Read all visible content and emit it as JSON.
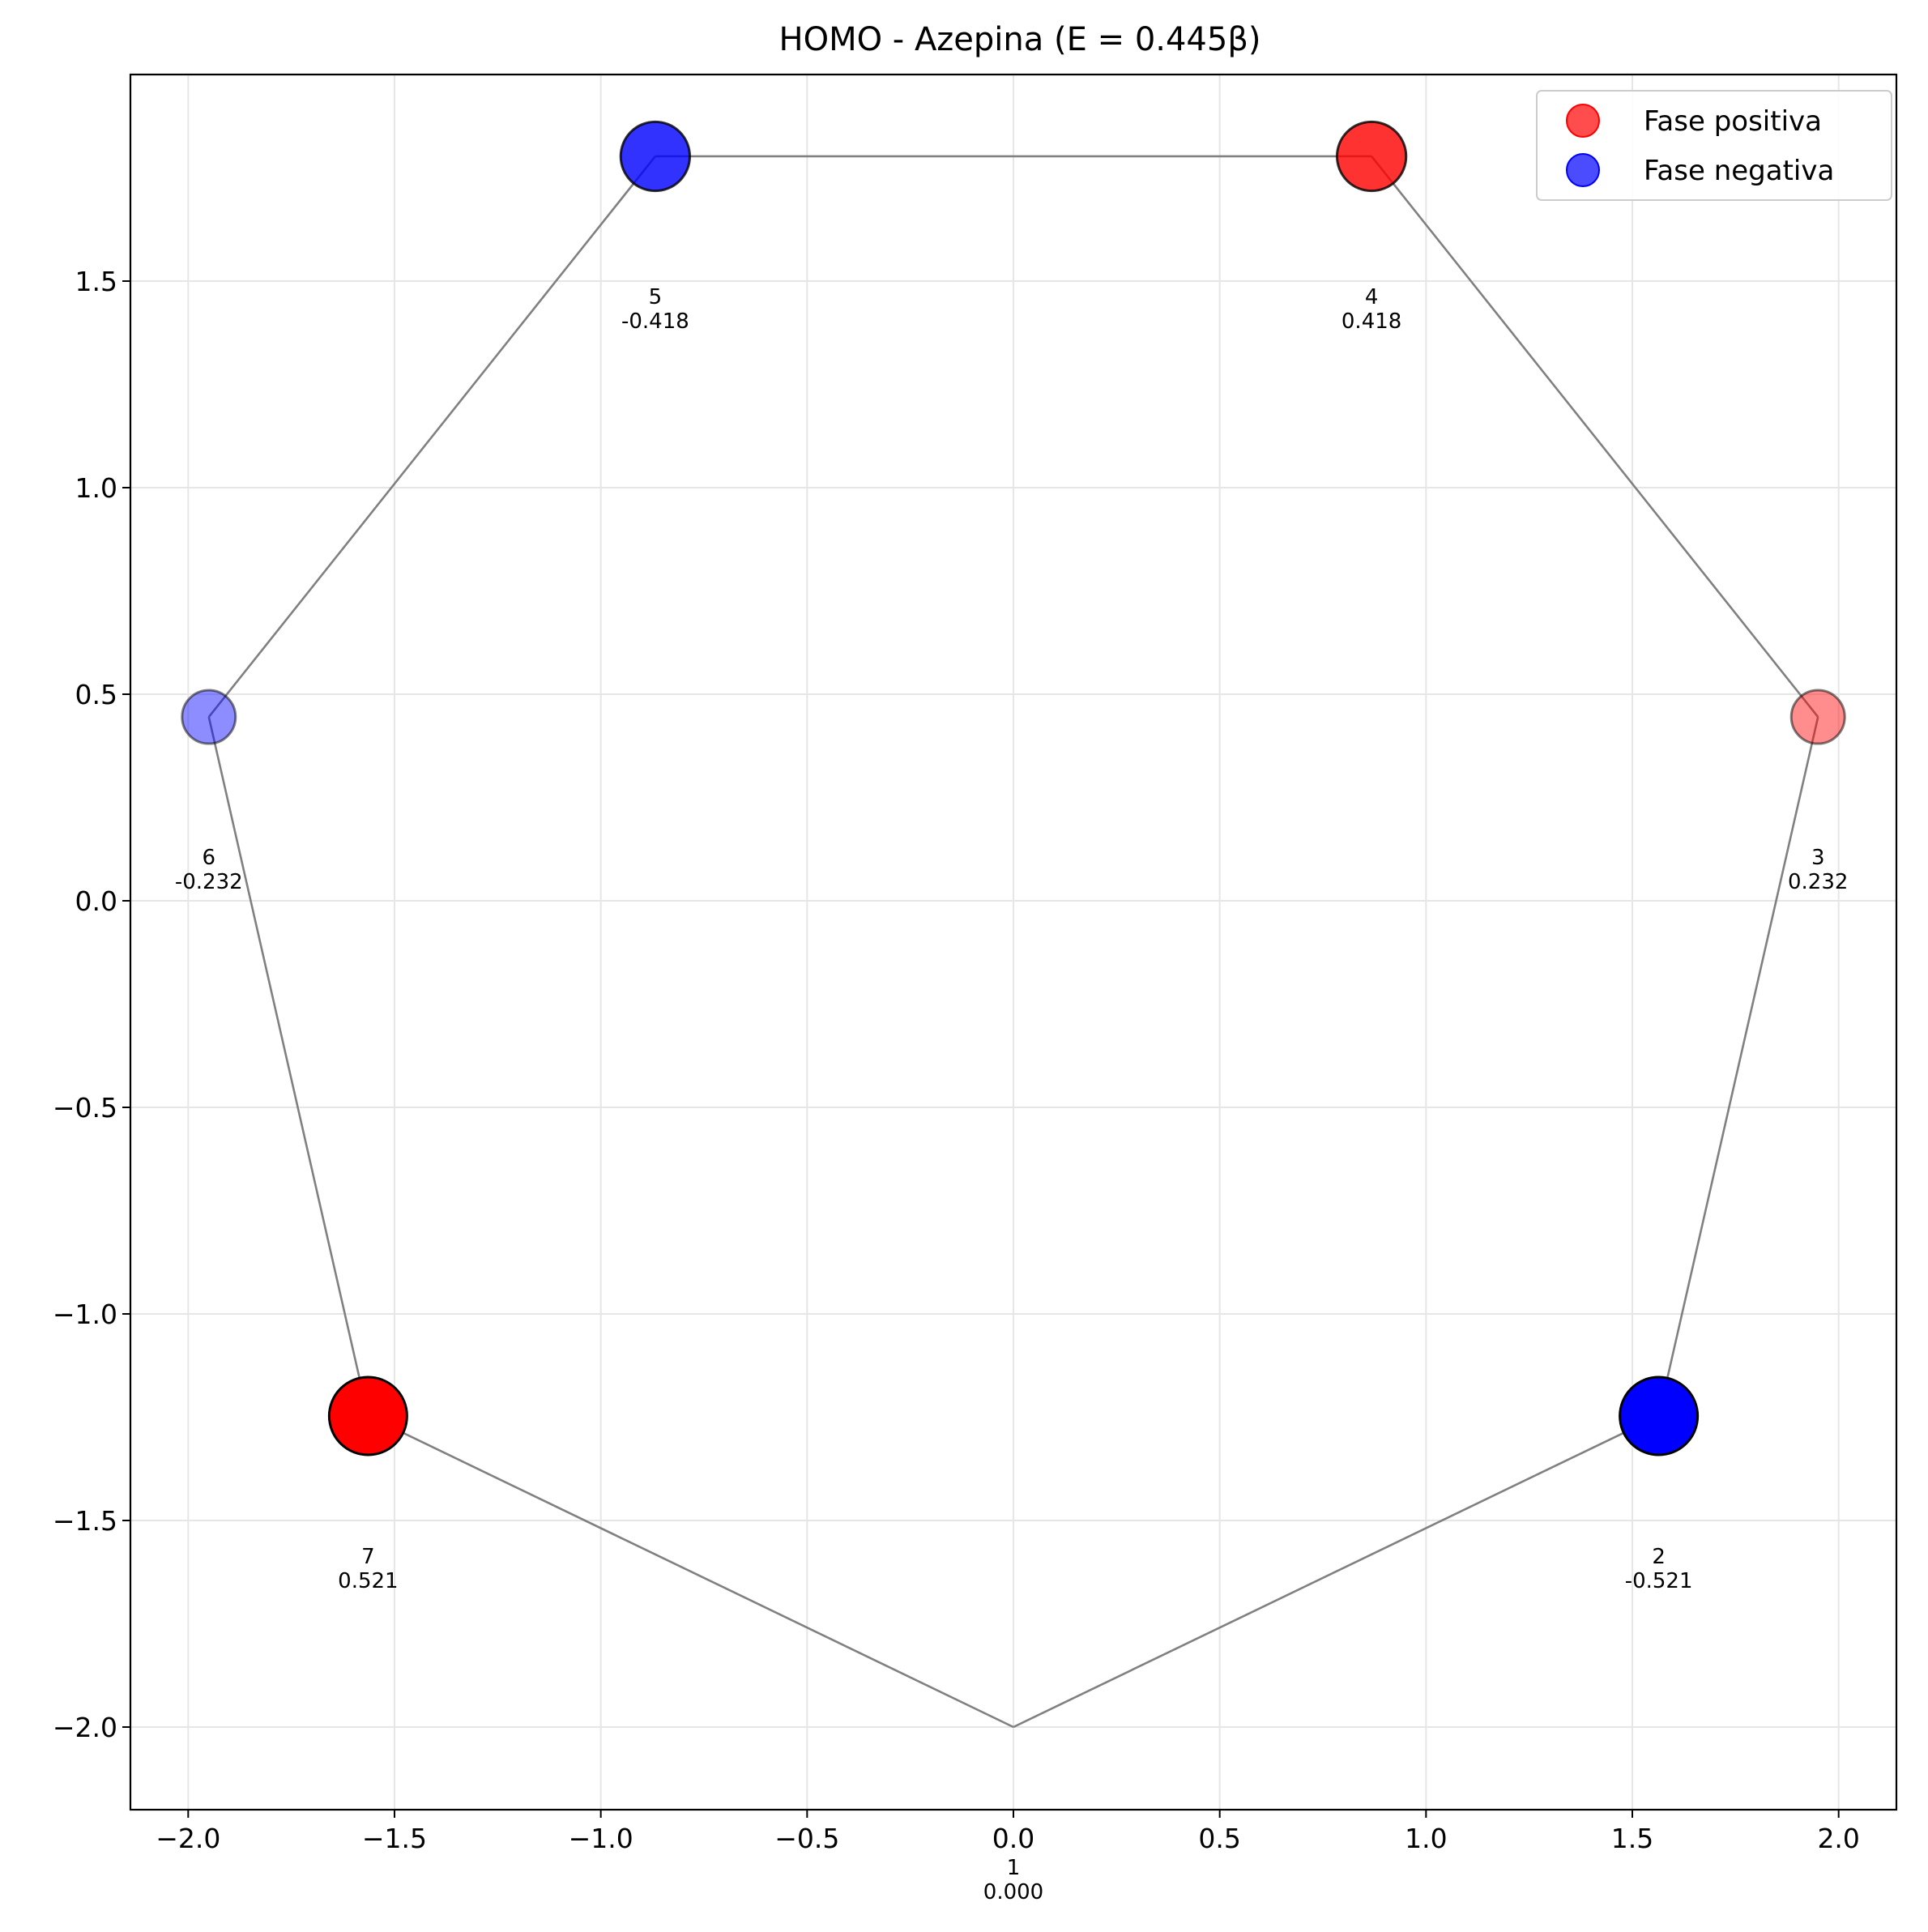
{
  "chart_data": {
    "type": "scatter",
    "title": "HOMO - Azepina (E = 0.445β)",
    "xlabel": "",
    "ylabel": "",
    "xlim": [
      -2.14,
      2.14
    ],
    "ylim": [
      -2.2,
      2.0
    ],
    "xticks": [
      -2.0,
      -1.5,
      -1.0,
      -0.5,
      0.0,
      0.5,
      1.0,
      1.5,
      2.0
    ],
    "xtick_labels": [
      "−2.0",
      "−1.5",
      "−1.0",
      "−0.5",
      "0.0",
      "0.5",
      "1.0",
      "1.5",
      "2.0"
    ],
    "yticks": [
      -2.0,
      -1.5,
      -1.0,
      -0.5,
      0.0,
      0.5,
      1.0,
      1.5
    ],
    "ytick_labels": [
      "−2.0",
      "−1.5",
      "−1.0",
      "−0.5",
      "0.0",
      "0.5",
      "1.0",
      "1.5"
    ],
    "grid": true,
    "legend_position": "top-right",
    "legend": [
      {
        "label": "Fase positiva",
        "color": "#ff0000"
      },
      {
        "label": "Fase negativa",
        "color": "#0000ff"
      }
    ],
    "bond_color": "#808080",
    "atoms": [
      {
        "id": "1",
        "x": 0.0,
        "y": -2.0,
        "coefficient": 0.0,
        "coef_label": "0.000"
      },
      {
        "id": "2",
        "x": 1.564,
        "y": -1.247,
        "coefficient": -0.521,
        "coef_label": "-0.521"
      },
      {
        "id": "3",
        "x": 1.95,
        "y": 0.445,
        "coefficient": 0.232,
        "coef_label": "0.232"
      },
      {
        "id": "4",
        "x": 0.868,
        "y": 1.802,
        "coefficient": 0.418,
        "coef_label": "0.418"
      },
      {
        "id": "5",
        "x": -0.868,
        "y": 1.802,
        "coefficient": -0.418,
        "coef_label": "-0.418"
      },
      {
        "id": "6",
        "x": -1.95,
        "y": 0.445,
        "coefficient": -0.232,
        "coef_label": "-0.232"
      },
      {
        "id": "7",
        "x": -1.564,
        "y": -1.247,
        "coefficient": 0.521,
        "coef_label": "0.521"
      }
    ],
    "positive_color": "#ff0000",
    "negative_color": "#0000ff"
  }
}
